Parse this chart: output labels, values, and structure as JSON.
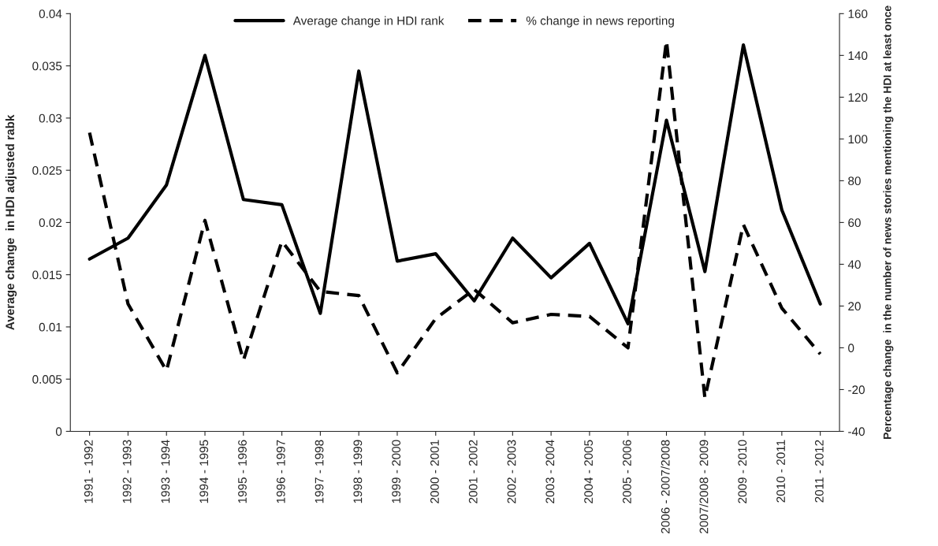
{
  "chart_data": {
    "type": "line",
    "categories": [
      "1991 - 1992",
      "1992 - 1993",
      "1993 - 1994",
      "1994 - 1995",
      "1995 - 1996",
      "1996 - 1997",
      "1997 - 1998",
      "1998 - 1999",
      "1999 - 2000",
      "2000 - 2001",
      "2001 - 2002",
      "2002 - 2003",
      "2003 - 2004",
      "2004 - 2005",
      "2005 - 2006",
      "2006 - 2007/2008",
      "2007/2008 - 2009",
      "2009 - 2010",
      "2010 - 2011",
      "2011 - 2012"
    ],
    "series": [
      {
        "name": "Average change in HDI rank",
        "color": "#000000",
        "line_style": "solid",
        "values": [
          0.0165,
          0.0185,
          0.0236,
          0.036,
          0.0222,
          0.0217,
          0.0113,
          0.0345,
          0.0163,
          0.017,
          0.0125,
          0.0185,
          0.0147,
          0.018,
          0.0103,
          0.0298,
          0.0153,
          0.037,
          0.0212,
          0.0122
        ]
      },
      {
        "name": "% change in news reporting",
        "color": "#000000",
        "line_style": "dashed",
        "axis": "y2",
        "values": [
          103,
          21,
          -11,
          61,
          -6,
          51,
          27,
          25,
          -12,
          14,
          28,
          12,
          16,
          15,
          0,
          147,
          -24,
          59,
          19,
          -3
        ]
      }
    ],
    "ylabel": "Average change  in HDI adjusted rabk",
    "y2label": "Percentage change  in the number of news stories mentioning the HDI at least once",
    "ylim": [
      0,
      0.04
    ],
    "yticks": [
      0,
      0.005,
      0.01,
      0.015,
      0.02,
      0.025,
      0.03,
      0.035,
      0.04
    ],
    "y2lim": [
      -40,
      160
    ],
    "y2ticks": [
      -40,
      -20,
      0,
      20,
      40,
      60,
      80,
      100,
      120,
      140,
      160
    ],
    "grid": false,
    "legend": "top",
    "marker": "none"
  }
}
